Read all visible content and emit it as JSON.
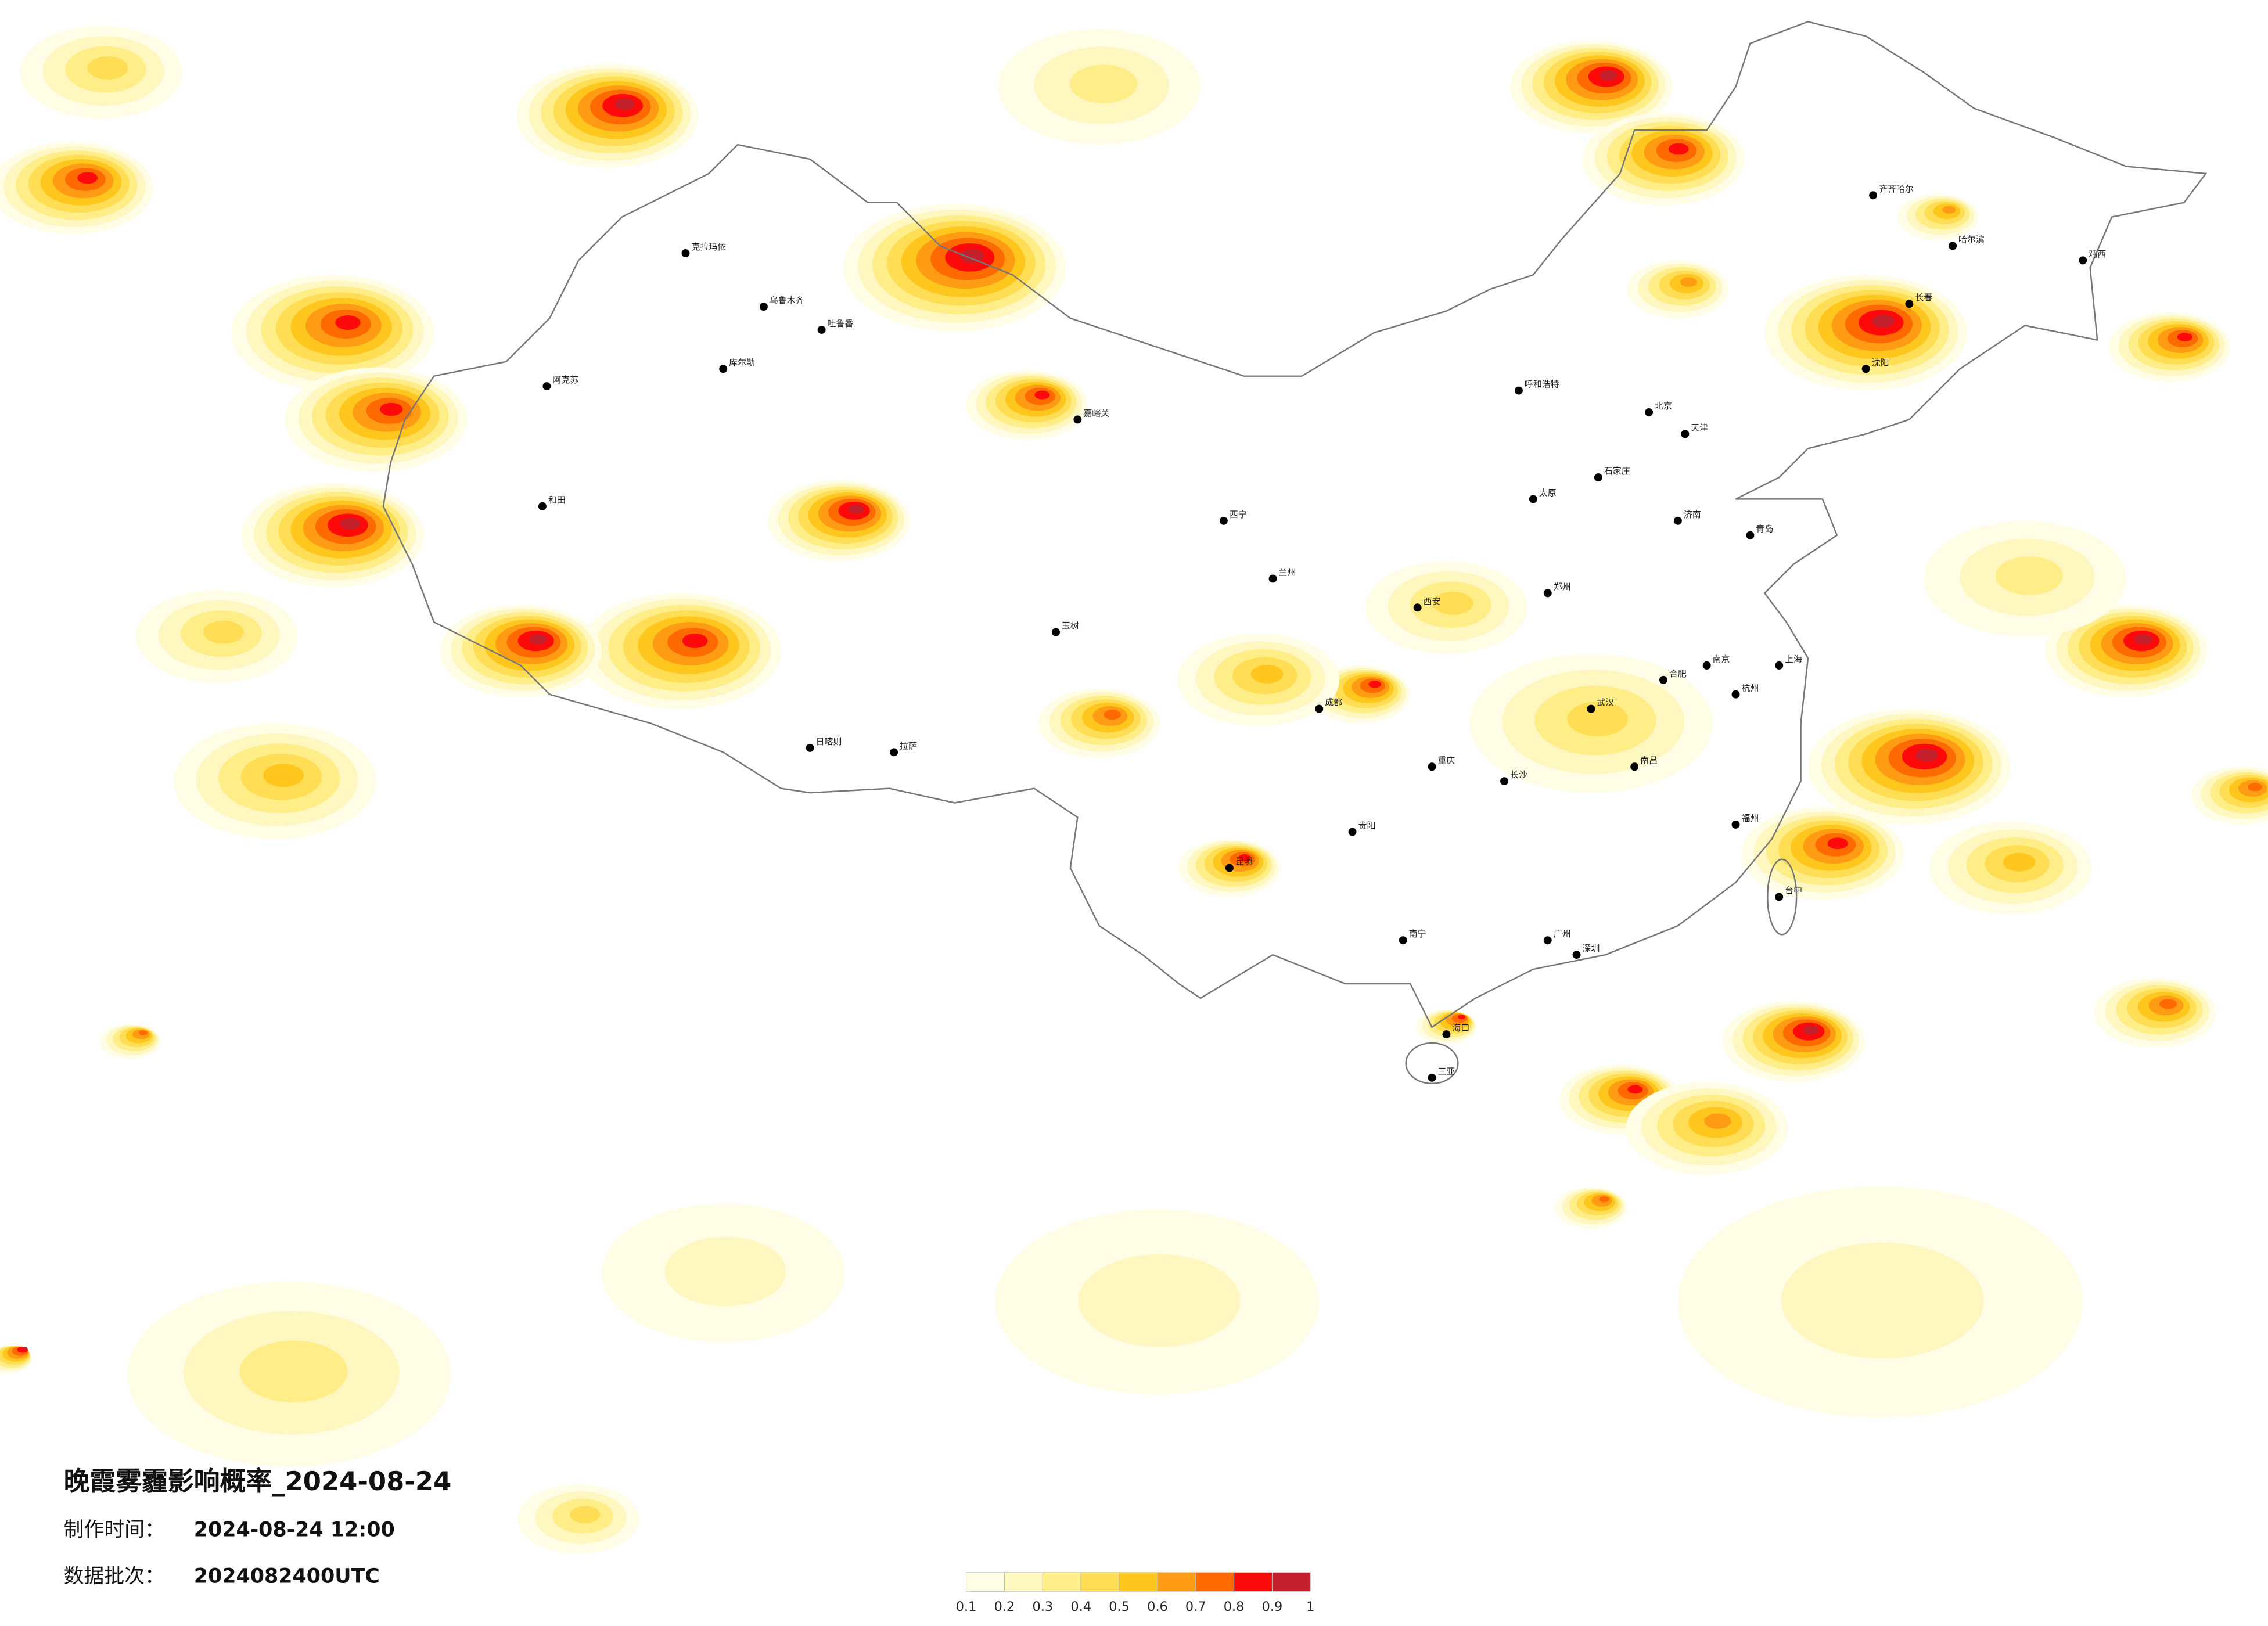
{
  "header": {
    "title": "晚霞雾霾影响概率_2024-08-24",
    "made_label": "制作时间：",
    "made_time": "2024-08-24 12:00",
    "batch_label": "数据批次：",
    "batch": "2024082400UTC"
  },
  "legend": {
    "ticks": [
      0.1,
      0.2,
      0.3,
      0.4,
      0.5,
      0.6,
      0.7,
      0.8,
      0.9,
      1
    ],
    "colors": [
      "#fffde6",
      "#fff6c0",
      "#ffee88",
      "#ffdd55",
      "#ffc61e",
      "#ff9c14",
      "#ff6a00",
      "#ff0a0a",
      "#c4202c"
    ]
  },
  "cities": [
    "乌鲁木齐",
    "克拉玛依",
    "库尔勒",
    "阿克苏",
    "和田",
    "吐鲁番",
    "嘉峪关",
    "西宁",
    "拉萨",
    "日喀则",
    "玉树",
    "成都",
    "重庆",
    "昆明",
    "贵阳",
    "南宁",
    "广州",
    "深圳",
    "海口",
    "三亚",
    "长沙",
    "武汉",
    "南昌",
    "福州",
    "台中",
    "杭州",
    "上海",
    "南京",
    "合肥",
    "郑州",
    "西安",
    "太原",
    "石家庄",
    "北京",
    "天津",
    "济南",
    "青岛",
    "沈阳",
    "长春",
    "哈尔滨",
    "齐齐哈尔",
    "呼和浩特",
    "兰州",
    "鸡西"
  ]
}
